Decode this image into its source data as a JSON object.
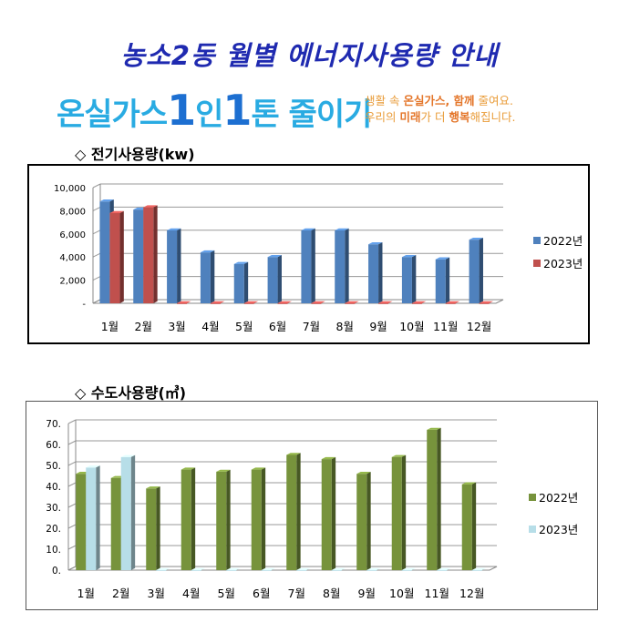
{
  "header": {
    "title": "농소2동 월별 에너지사용량 안내",
    "banner": {
      "part1": "온실가스",
      "num1": "1",
      "part2": "인",
      "num2": "1",
      "part3": "톤 줄이기",
      "sub_line1_a": "생활 속 ",
      "sub_line1_b": "온실가스, 함께",
      "sub_line1_c": " 줄여요.",
      "sub_line2_a": "우리의 ",
      "sub_line2_b": "미래",
      "sub_line2_c": "가 더 ",
      "sub_line2_d": "행복",
      "sub_line2_e": "해집니다."
    }
  },
  "sections": {
    "electric_title": "◇ 전기사용량(kw)",
    "water_title": "◇ 수도사용량(㎥)"
  },
  "colors": {
    "title": "#1f2ab0",
    "electric_2022": "#4f81bd",
    "electric_2023": "#c0504d",
    "water_2022": "#77933c",
    "water_2023": "#b7dee8"
  },
  "chart_data": [
    {
      "type": "bar",
      "categories": [
        "1월",
        "2월",
        "3월",
        "4월",
        "5월",
        "6월",
        "7월",
        "8월",
        "9월",
        "10월",
        "11월",
        "12월"
      ],
      "series": [
        {
          "name": "2022년",
          "values": [
            8800,
            8100,
            6300,
            4400,
            3400,
            4000,
            6300,
            6300,
            5100,
            4000,
            3800,
            5500
          ]
        },
        {
          "name": "2023년",
          "values": [
            7800,
            8300,
            0,
            0,
            0,
            0,
            0,
            0,
            0,
            0,
            0,
            0
          ]
        }
      ],
      "yticks": [
        "-",
        "2,000",
        "4,000",
        "6,000",
        "8,000",
        "10,000"
      ],
      "ylim": [
        0,
        10000
      ],
      "grid": true,
      "legend": "right"
    },
    {
      "type": "bar",
      "categories": [
        "1월",
        "2월",
        "3월",
        "4월",
        "5월",
        "6월",
        "7월",
        "8월",
        "9월",
        "10월",
        "11월",
        "12월"
      ],
      "series": [
        {
          "name": "2022년",
          "values": [
            46,
            44,
            39,
            48,
            47,
            48,
            55,
            53,
            46,
            54,
            67,
            41
          ]
        },
        {
          "name": "2023년",
          "values": [
            49,
            54,
            0,
            0,
            0,
            0,
            0,
            0,
            0,
            0,
            0,
            0
          ]
        }
      ],
      "yticks": [
        "0.",
        "10.",
        "20.",
        "30.",
        "40.",
        "50.",
        "60.",
        "70."
      ],
      "ylim": [
        0,
        70
      ],
      "grid": true,
      "legend": "right"
    }
  ]
}
